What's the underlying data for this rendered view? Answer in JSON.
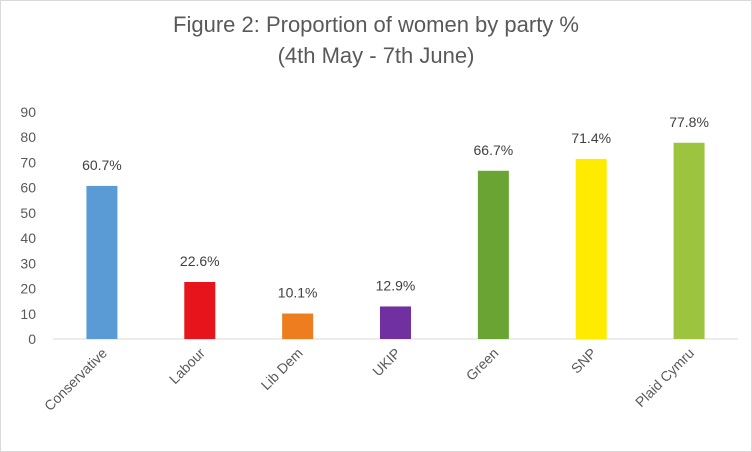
{
  "chart_data": {
    "type": "bar",
    "title_line_1": "Figure 2: Proportion of women by party %",
    "title_line_2": "(4th May - 7th June)",
    "categories": [
      "Conservative",
      "Labour",
      "Lib Dem",
      "UKIP",
      "Green",
      "SNP",
      "Plaid Cymru"
    ],
    "values": [
      60.7,
      22.6,
      10.1,
      12.9,
      66.7,
      71.4,
      77.8
    ],
    "data_labels": [
      "60.7%",
      "22.6%",
      "10.1%",
      "12.9%",
      "66.7%",
      "71.4%",
      "77.8%"
    ],
    "colors": [
      "#5b9bd5",
      "#e8141b",
      "#ee7d1f",
      "#7030a0",
      "#6aa533",
      "#ffeb00",
      "#9dc43f"
    ],
    "ylim": [
      0,
      90
    ],
    "yticks": [
      "0",
      "10",
      "20",
      "30",
      "40",
      "50",
      "60",
      "70",
      "80",
      "90"
    ],
    "xlabel": "",
    "ylabel": "",
    "grid": false,
    "legend": "none"
  }
}
